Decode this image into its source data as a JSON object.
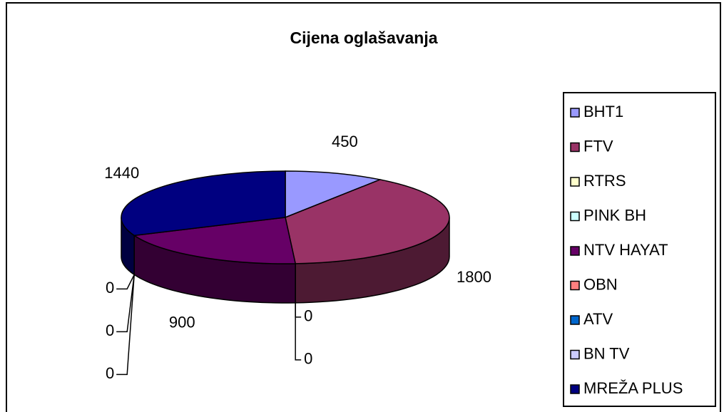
{
  "chart_data": {
    "type": "pie3d",
    "title": "Cijena oglašavanja",
    "categories": [
      "BHT1",
      "FTV",
      "RTRS",
      "PINK BH",
      "NTV HAYAT",
      "OBN",
      "ATV",
      "BN TV",
      "MREŽA PLUS"
    ],
    "values": [
      450,
      1800,
      0,
      0,
      900,
      0,
      0,
      0,
      1440
    ],
    "colors": [
      "#9999ff",
      "#993366",
      "#ffffcc",
      "#ccffff",
      "#660066",
      "#ff8080",
      "#0066cc",
      "#ccccff",
      "#000080"
    ],
    "legend": "right"
  }
}
